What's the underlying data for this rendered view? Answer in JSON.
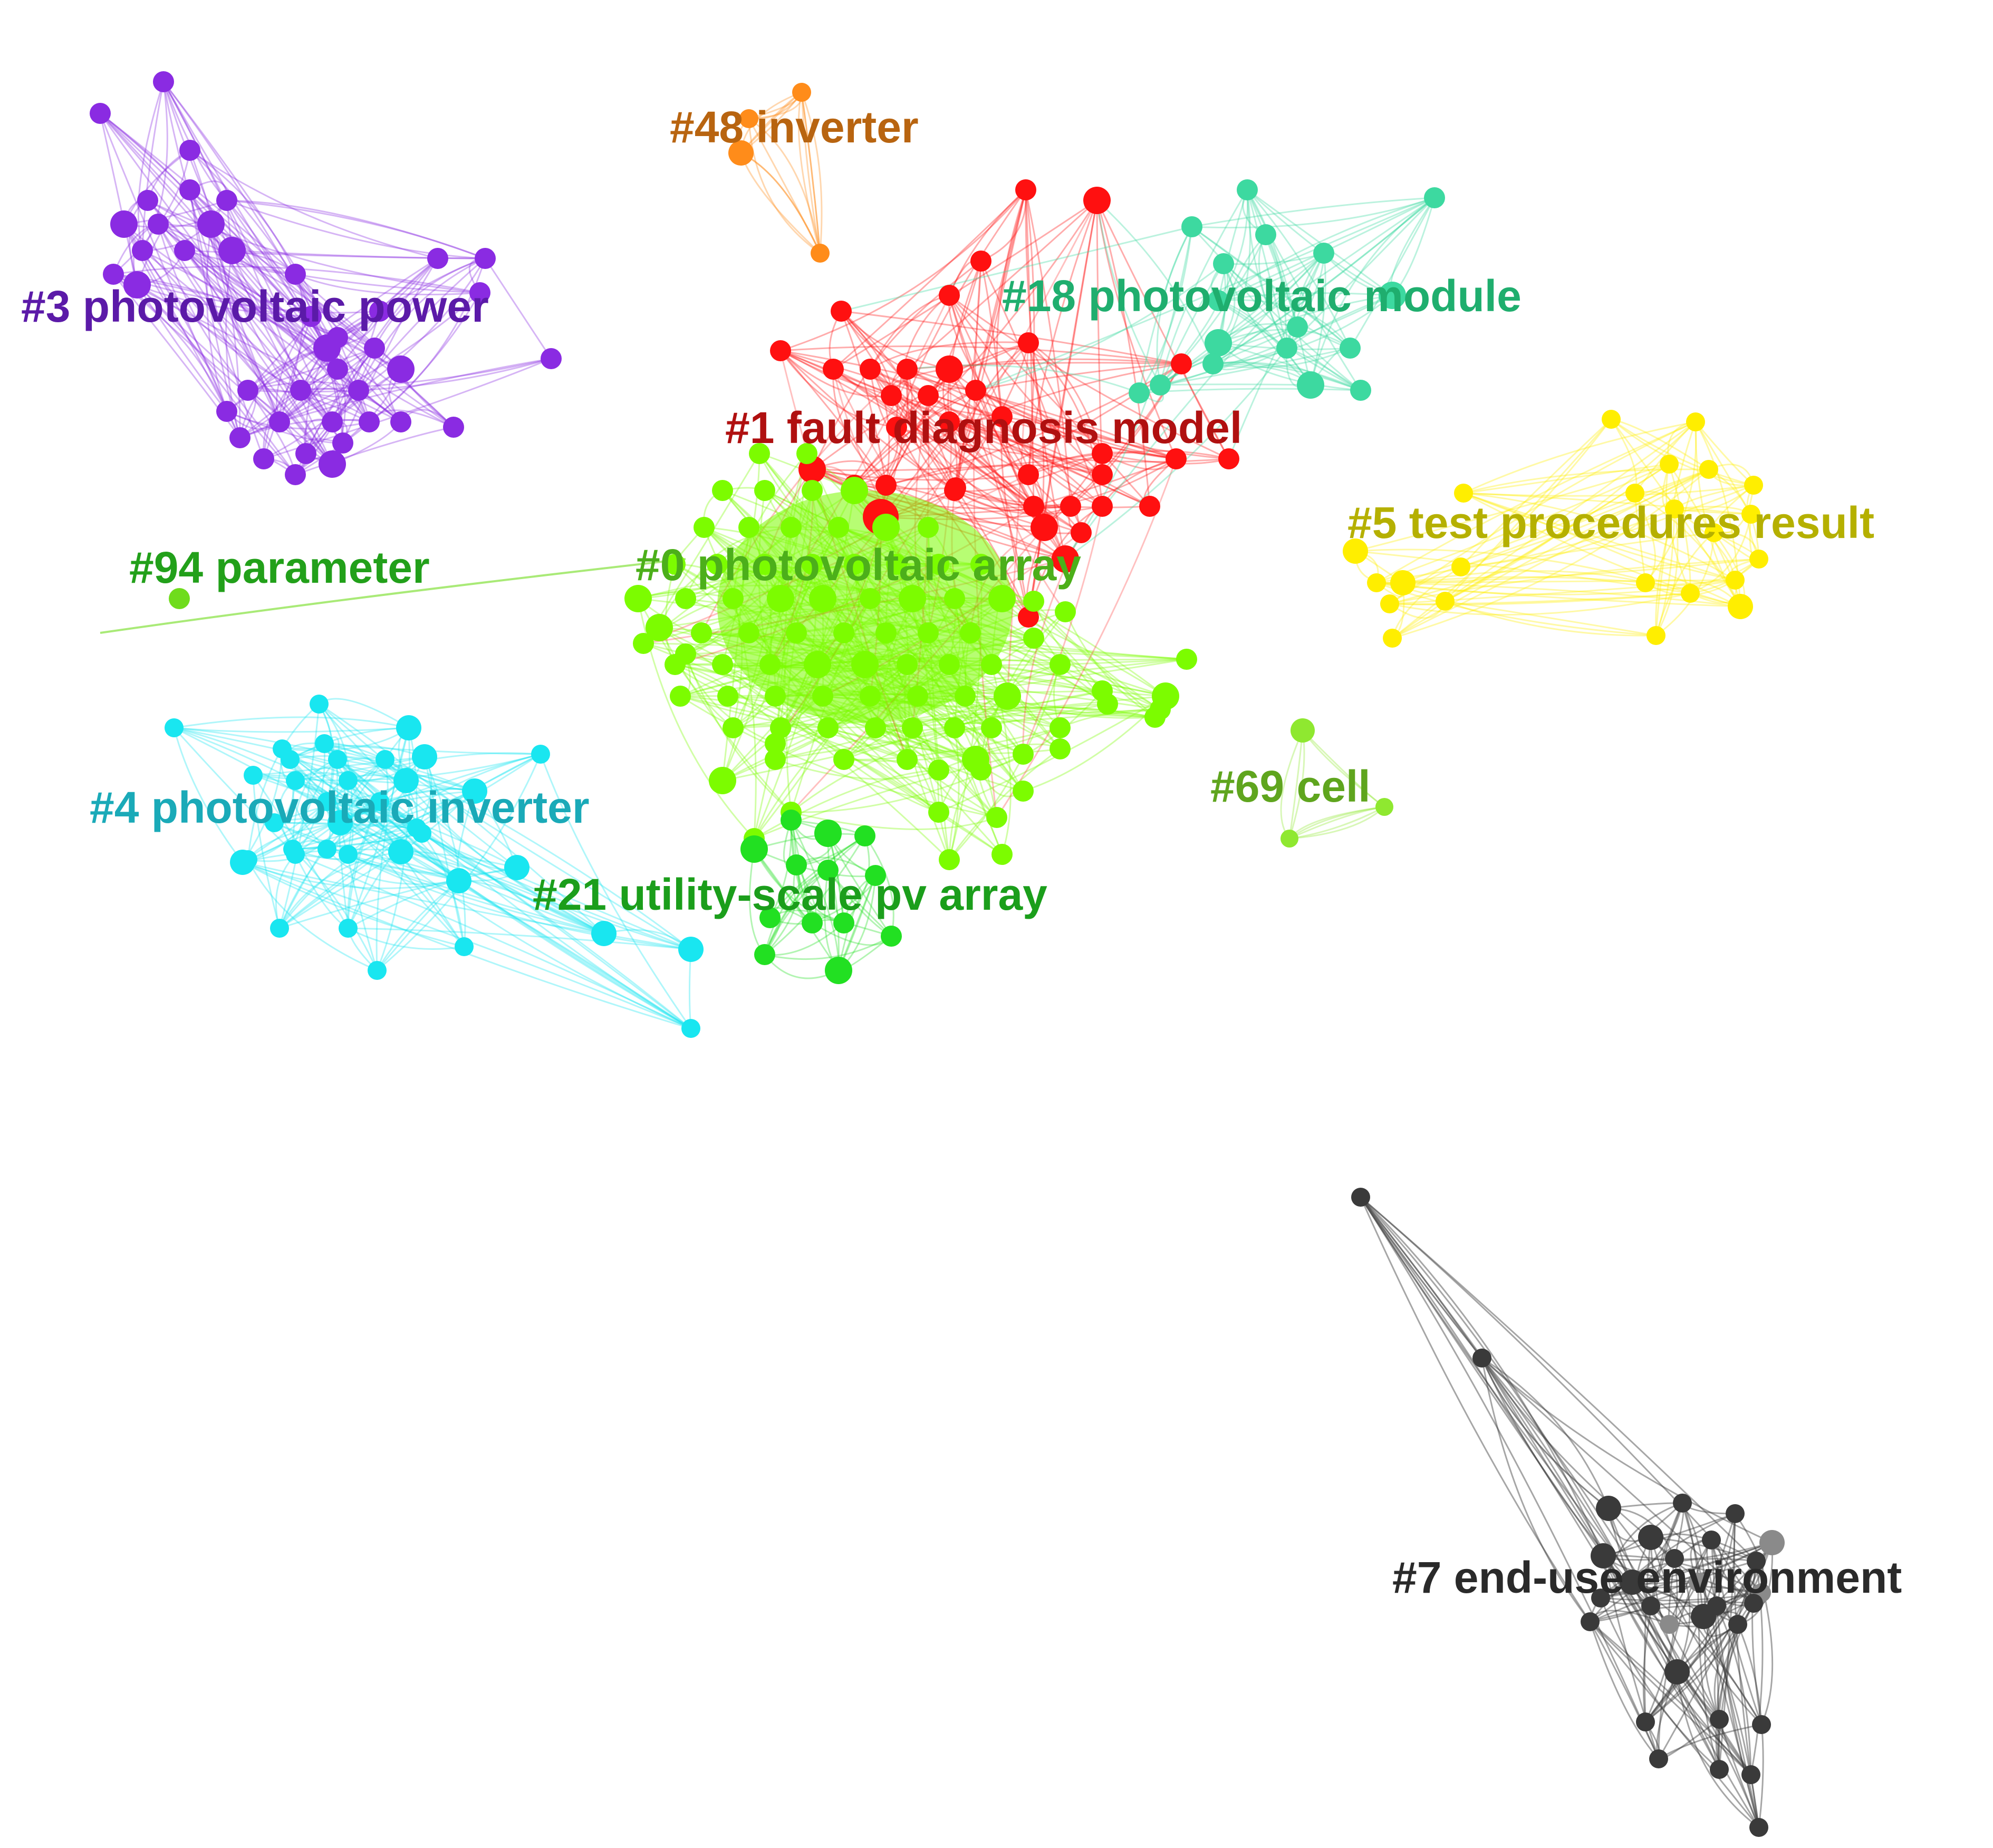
{
  "clusters": [
    {
      "id": "c3",
      "label": "#3 photovoltaic power",
      "color": "#8a2be2",
      "text_color": "#5b1aa8"
    },
    {
      "id": "c48",
      "label": "#48 inverter",
      "color": "#ff8c1a",
      "text_color": "#b86410"
    },
    {
      "id": "c1",
      "label": "#1 fault diagnosis model",
      "color": "#ff1010",
      "text_color": "#b01010"
    },
    {
      "id": "c18",
      "label": "#18 photovoltaic module",
      "color": "#3dd9a0",
      "text_color": "#1fae6e"
    },
    {
      "id": "c5",
      "label": "#5 test procedures result",
      "color": "#ffee00",
      "text_color": "#b5b000"
    },
    {
      "id": "c94",
      "label": "#94 parameter",
      "color": "#6fdc1c",
      "text_color": "#22a01a"
    },
    {
      "id": "c0",
      "label": "#0 photovoltaic array",
      "color": "#7cfc00",
      "text_color": "#4caf1a"
    },
    {
      "id": "c4",
      "label": "#4 photovoltaic inverter",
      "color": "#19e6f0",
      "text_color": "#1aaab8"
    },
    {
      "id": "c69",
      "label": "#69 cell",
      "color": "#8fe830",
      "text_color": "#5fa51e"
    },
    {
      "id": "c21",
      "label": "#21 utility-scale pv array",
      "color": "#22e022",
      "text_color": "#1b9e1b"
    },
    {
      "id": "c7",
      "label": "#7 end-use environment",
      "color": "#3a3a3a",
      "text_color": "#2a2a2a"
    }
  ]
}
